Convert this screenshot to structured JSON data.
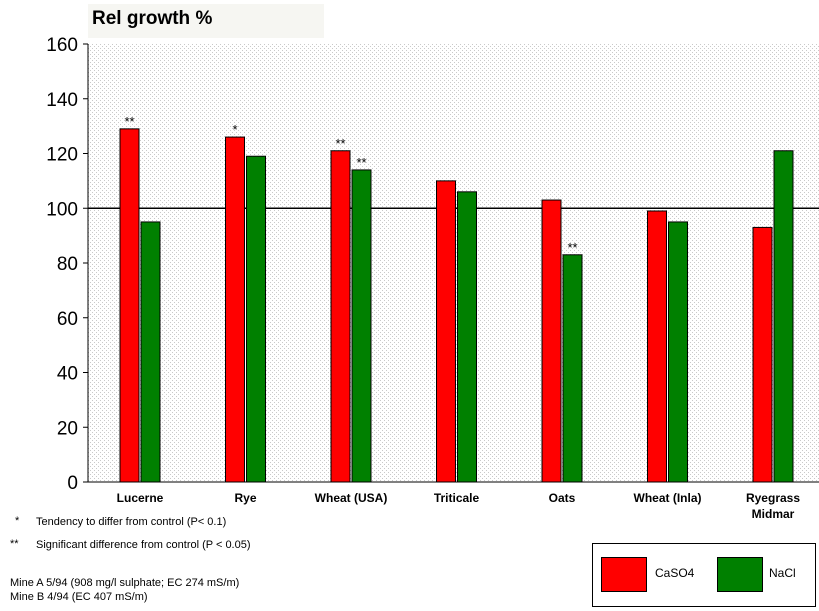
{
  "chart_data": {
    "type": "bar",
    "title": "Rel growth %",
    "categories": [
      "Lucerne",
      "Rye",
      "Wheat (USA)",
      "Triticale",
      "Oats",
      "Wheat (Inla)",
      "Ryegrass Midmar"
    ],
    "series": [
      {
        "name": "CaSO4",
        "color": "#ff0000",
        "values": [
          129,
          126,
          121,
          110,
          103,
          99,
          93
        ],
        "annotations": [
          "**",
          "*",
          "**",
          "",
          "",
          "",
          ""
        ]
      },
      {
        "name": "NaCl",
        "color": "#008000",
        "values": [
          95,
          119,
          114,
          106,
          83,
          95,
          121
        ],
        "annotations": [
          "",
          "",
          "**",
          "",
          "**",
          "",
          ""
        ]
      }
    ],
    "ylim": [
      0,
      160
    ],
    "yticks": [
      0,
      20,
      40,
      60,
      80,
      100,
      120,
      140,
      160
    ],
    "reference_line": 100,
    "grid": "dotted background",
    "legend_position": "bottom-right"
  },
  "notes": {
    "line1_mark": "*",
    "line1_text": "Tendency to differ from control (P< 0.1)",
    "line2_mark": "**",
    "line2_text": "Significant difference from control (P < 0.05)",
    "mine_a": "Mine A 5/94 (908 mg/l sulphate; EC 274 mS/m)",
    "mine_b": "Mine B 4/94 (EC 407 mS/m)"
  }
}
